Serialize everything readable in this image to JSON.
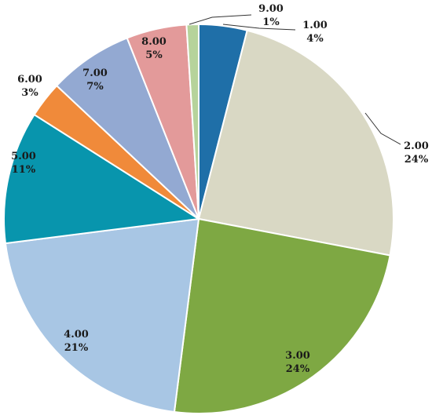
{
  "chart_data": {
    "type": "pie",
    "title": "",
    "slices": [
      {
        "category": "1.00",
        "percent_label": "4%",
        "value": 4,
        "color": "#1f6fa8"
      },
      {
        "category": "2.00",
        "percent_label": "24%",
        "value": 24,
        "color": "#d9d8c4"
      },
      {
        "category": "3.00",
        "percent_label": "24%",
        "value": 24,
        "color": "#7ea843"
      },
      {
        "category": "4.00",
        "percent_label": "21%",
        "value": 21,
        "color": "#a8c6e4"
      },
      {
        "category": "5.00",
        "percent_label": "11%",
        "value": 11,
        "color": "#0895ad"
      },
      {
        "category": "6.00",
        "percent_label": "3%",
        "value": 3,
        "color": "#f08a3a"
      },
      {
        "category": "7.00",
        "percent_label": "7%",
        "value": 7,
        "color": "#93a9d2"
      },
      {
        "category": "8.00",
        "percent_label": "5%",
        "value": 5,
        "color": "#e39a9a"
      },
      {
        "category": "9.00",
        "percent_label": "1%",
        "value": 1,
        "color": "#b6d39b"
      }
    ],
    "label_color": "#1a1a1a",
    "legend": "none"
  }
}
